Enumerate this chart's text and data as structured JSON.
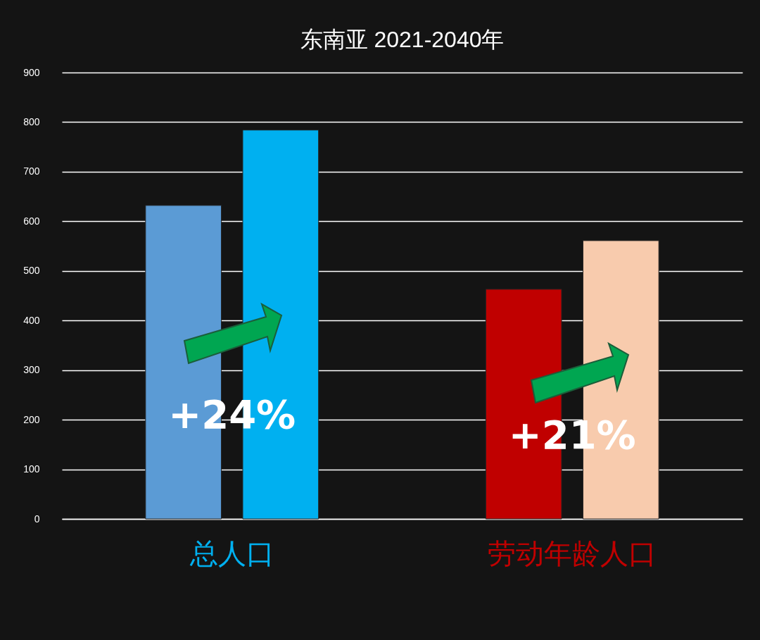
{
  "chart_data": {
    "type": "bar",
    "title": "东南亚 2021-2040年",
    "categories": [
      "总人口",
      "劳动年龄人口"
    ],
    "series": [
      {
        "values": [
          632,
          463
        ],
        "colors": [
          "#5b9bd5",
          "#c00000"
        ]
      },
      {
        "values": [
          784,
          561
        ],
        "colors": [
          "#00b0f0",
          "#f8cbad"
        ]
      }
    ],
    "ylim": [
      0,
      900
    ],
    "yticks": [
      0,
      100,
      200,
      300,
      400,
      500,
      600,
      700,
      800,
      900
    ],
    "grid": "y",
    "annotations": [
      "+24%",
      "+21%"
    ]
  }
}
